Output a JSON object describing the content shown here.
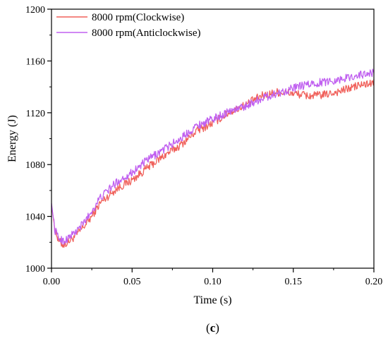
{
  "chart_data": {
    "type": "line",
    "xlabel": "Time (s)",
    "ylabel": "Energy (J)",
    "xlim": [
      0.0,
      0.2
    ],
    "ylim": [
      1000,
      1200
    ],
    "x_ticks": [
      "0.00",
      "0.05",
      "0.10",
      "0.15",
      "0.20"
    ],
    "y_ticks": [
      "1000",
      "1040",
      "1080",
      "1120",
      "1160",
      "1200"
    ],
    "x_tick_values": [
      0.0,
      0.05,
      0.1,
      0.15,
      0.2
    ],
    "y_tick_values": [
      1000,
      1040,
      1080,
      1120,
      1160,
      1200
    ],
    "grid": false,
    "legend_position": "top-left",
    "panel_label": {
      "open": "(",
      "letter": "c",
      "close": ")"
    },
    "x": [
      0.0,
      0.002,
      0.004,
      0.006,
      0.008,
      0.01,
      0.015,
      0.02,
      0.025,
      0.03,
      0.04,
      0.05,
      0.06,
      0.07,
      0.08,
      0.09,
      0.1,
      0.11,
      0.12,
      0.13,
      0.14,
      0.15,
      0.16,
      0.17,
      0.18,
      0.19,
      0.2
    ],
    "series": [
      {
        "name": "8000 rpm(Clockwise)",
        "color": "#f0605a",
        "values": [
          1048,
          1032,
          1022,
          1019,
          1018,
          1020,
          1025,
          1032,
          1040,
          1050,
          1061,
          1068,
          1078,
          1087,
          1095,
          1106,
          1112,
          1120,
          1126,
          1133,
          1136,
          1135,
          1133,
          1134,
          1137,
          1141,
          1143
        ]
      },
      {
        "name": "8000 rpm(Anticlockwise)",
        "color": "#c060f0",
        "values": [
          1050,
          1030,
          1024,
          1022,
          1021,
          1023,
          1028,
          1035,
          1044,
          1054,
          1066,
          1074,
          1084,
          1092,
          1100,
          1110,
          1115,
          1121,
          1125,
          1131,
          1135,
          1139,
          1142,
          1144,
          1146,
          1149,
          1151
        ]
      }
    ]
  }
}
